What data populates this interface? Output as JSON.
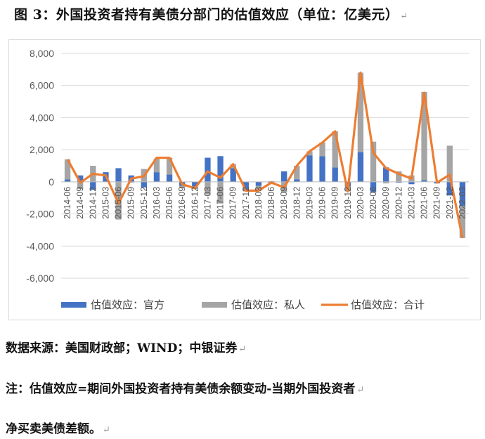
{
  "figure": {
    "title": "图 3：外国投资者持有美债分部门的估值效应（单位：亿美元）",
    "paragraph_mark": "↵"
  },
  "footer": {
    "source": "数据来源：美国财政部；WIND；中银证券",
    "note_line1": "注：估值效应=期间外国投资者持有美债余额变动-当期外国投资者",
    "note_line2": "净买卖美债差额。"
  },
  "colors": {
    "official": "#4472C4",
    "private": "#A5A5A5",
    "total": "#ED7D31",
    "grid": "#D9D9D9",
    "axis": "#BFBFBF"
  },
  "chart_data": {
    "type": "bar",
    "stacked": true,
    "combo_line_series": "估值效应：合计",
    "ylim": [
      -6000,
      8000
    ],
    "yticks": [
      8000,
      6000,
      4000,
      2000,
      0,
      -2000,
      -4000,
      -6000
    ],
    "ytick_labels": [
      "8,000",
      "6,000",
      "4,000",
      "2,000",
      "0",
      "-2,000",
      "-4,000",
      "-6,000"
    ],
    "grid": true,
    "legend_position": "bottom",
    "x_tick_labels": [
      "2014-06",
      "2014-09",
      "2014-12",
      "2015-03",
      "2015-06",
      "2015-09",
      "2015-12",
      "2016-03",
      "2016-06",
      "2016-09",
      "2016-12",
      "2017-03",
      "2017-06",
      "2017-09",
      "2017-12",
      "2018-03",
      "2018-06",
      "2018-09",
      "2018-12",
      "2019-03",
      "2019-06",
      "2019-09",
      "2019-12",
      "2020-03",
      "2020-06",
      "2020-09",
      "2020-12",
      "2021-03",
      "2021-06",
      "2021-09",
      "2021-12",
      "2022-03"
    ],
    "categories": [
      "2014-06",
      "2014-09",
      "2014-12",
      "2015-03",
      "2015-06",
      "2015-09",
      "2015-12",
      "2016-03",
      "2016-06",
      "2016-09",
      "2016-12",
      "2017-03",
      "2017-06",
      "2017-09",
      "2017-12",
      "2018-03",
      "2018-06",
      "2018-09",
      "2018-12",
      "2019-03",
      "2019-06",
      "2019-09",
      "2019-12",
      "2020-03",
      "2020-06",
      "2020-09",
      "2020-12",
      "2021-03",
      "2021-06",
      "2021-09",
      "2021-12",
      "2022-03"
    ],
    "series": [
      {
        "name": "估值效应：官方",
        "kind": "bar",
        "values": [
          150,
          400,
          -500,
          600,
          850,
          400,
          -350,
          600,
          450,
          -250,
          -300,
          1500,
          1600,
          850,
          -500,
          -250,
          -100,
          650,
          150,
          1650,
          1600,
          900,
          -300,
          1850,
          -650,
          900,
          -50,
          -150,
          100,
          -100,
          -850,
          -1500
        ]
      },
      {
        "name": "估值效应：私人",
        "kind": "bar",
        "values": [
          1250,
          -450,
          1000,
          0,
          -2350,
          -50,
          800,
          850,
          1050,
          -150,
          -150,
          -800,
          -1350,
          250,
          -100,
          -300,
          50,
          -650,
          850,
          250,
          850,
          2250,
          -300,
          4950,
          2500,
          -100,
          650,
          400,
          5500,
          0,
          2250,
          -2000
        ]
      },
      {
        "name": "估值效应：合计",
        "kind": "line",
        "values": [
          1400,
          -50,
          500,
          400,
          -1350,
          200,
          350,
          1500,
          1500,
          -150,
          -400,
          650,
          250,
          1100,
          -550,
          -550,
          -50,
          -350,
          1000,
          1900,
          2450,
          3150,
          -600,
          6800,
          1800,
          850,
          500,
          200,
          5550,
          -50,
          450,
          -3500
        ]
      }
    ]
  }
}
